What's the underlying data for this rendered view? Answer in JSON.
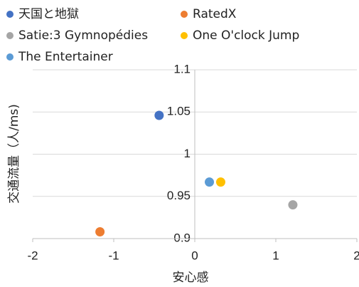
{
  "chart_data": {
    "type": "scatter",
    "x_label": "安心感",
    "y_label": "交通流量（人/ms)",
    "series": [
      {
        "name": "天国と地獄",
        "color": "#4472c4",
        "x": [
          -0.44
        ],
        "y": [
          1.046
        ]
      },
      {
        "name": "RatedX",
        "color": "#ed7d31",
        "x": [
          -1.17
        ],
        "y": [
          0.908
        ]
      },
      {
        "name": "Satie:3 Gymnopédies",
        "color": "#a5a5a5",
        "x": [
          1.21
        ],
        "y": [
          0.94
        ]
      },
      {
        "name": "One O'clock Jump",
        "color": "#ffc000",
        "x": [
          0.32
        ],
        "y": [
          0.967
        ]
      },
      {
        "name": "The Entertainer",
        "color": "#5b9bd5",
        "x": [
          0.18
        ],
        "y": [
          0.967
        ]
      }
    ],
    "xlim": [
      -2,
      2
    ],
    "xticks": [
      -2,
      -1,
      0,
      1,
      2
    ],
    "ylim": [
      0.9,
      1.1
    ],
    "yticks": [
      0.9,
      0.95,
      1,
      1.05,
      1.1
    ],
    "grid": true,
    "legend_position": "top"
  }
}
